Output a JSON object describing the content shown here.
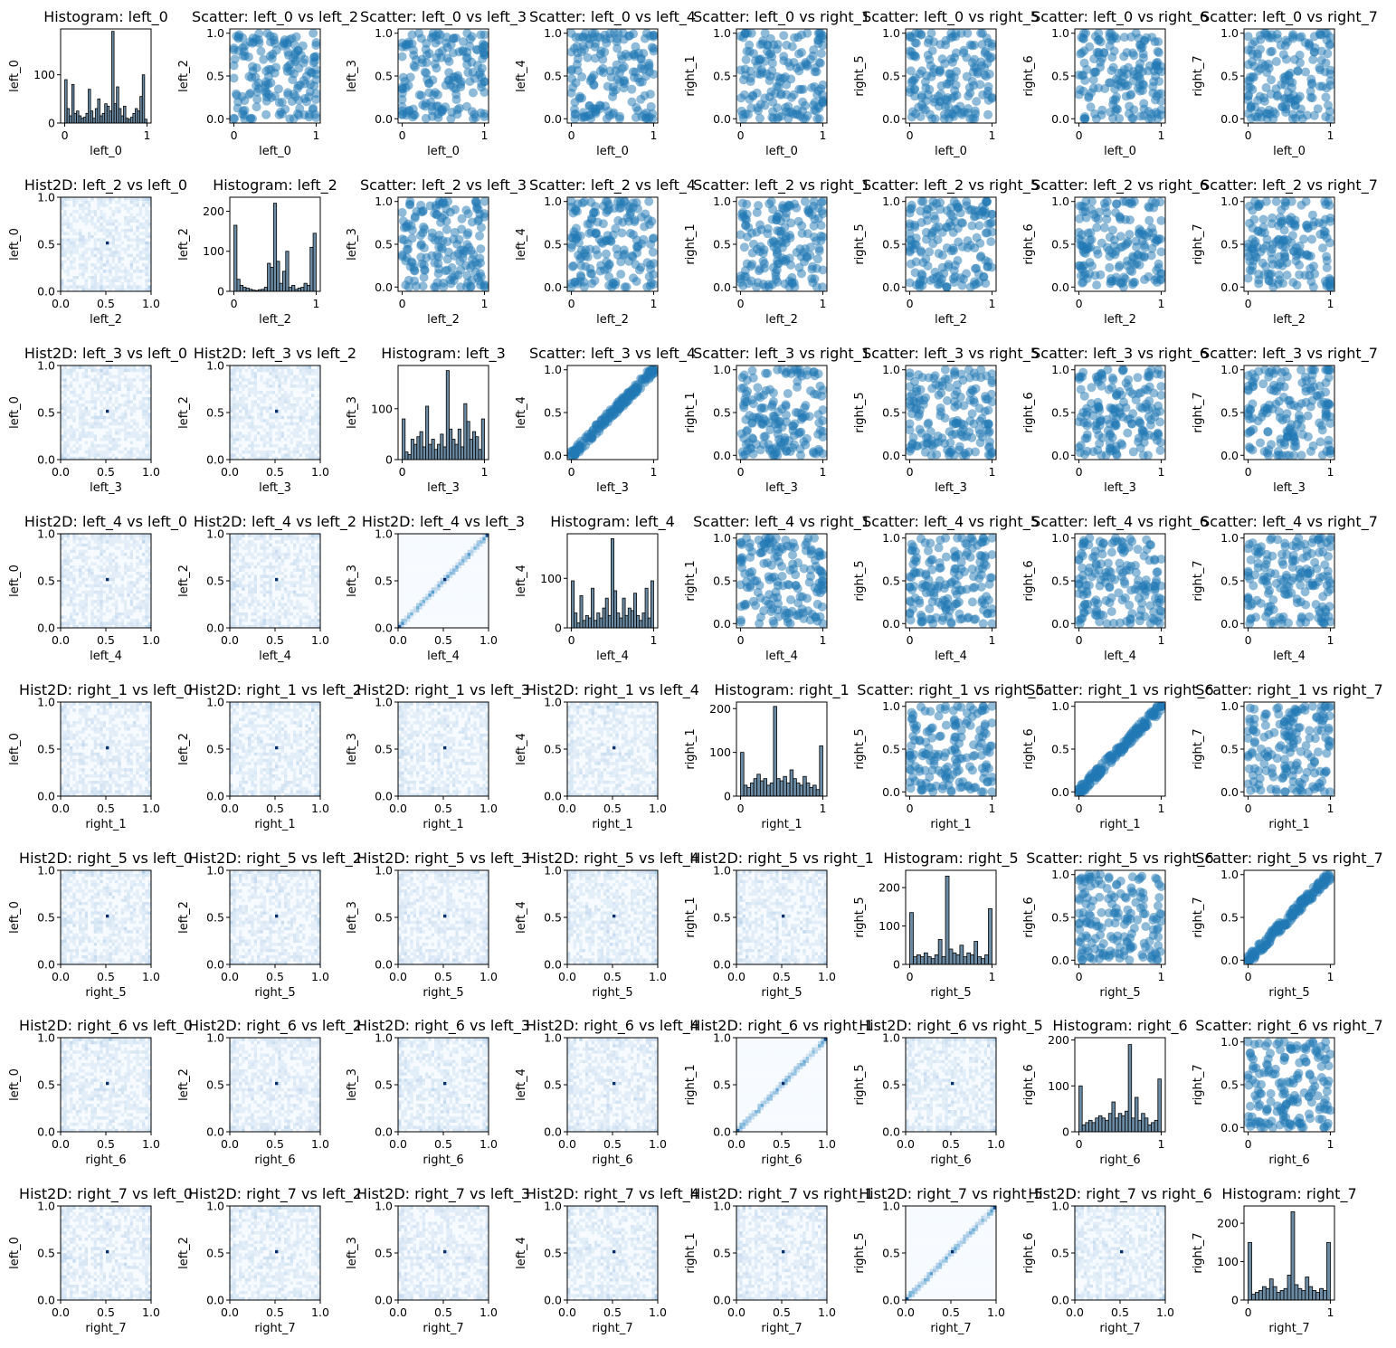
{
  "chart_data": {
    "type": "pair-grid",
    "variables": [
      "left_0",
      "left_2",
      "left_3",
      "left_4",
      "right_1",
      "right_5",
      "right_6",
      "right_7"
    ],
    "diag_type": "histogram",
    "upper_type": "scatter",
    "lower_type": "hist2d",
    "title_templates": {
      "histogram": "Histogram: {a}",
      "scatter": "Scatter: {a} vs {b}",
      "hist2d": "Hist2D: {a} vs {b}"
    },
    "colors": {
      "scatter": "#1f77b4",
      "histogram_bar": "#6b8ba4",
      "hist2d_cmap": "Blues"
    },
    "scatter_axis": {
      "lim": [
        -0.05,
        1.05
      ],
      "ticks": [
        0,
        0.5,
        1
      ],
      "tick_labels": [
        "0.0",
        "0.5",
        "1.0"
      ],
      "x_tick_labels": [
        "0",
        "1"
      ]
    },
    "hist2d_axis": {
      "lim": [
        0,
        1
      ],
      "ticks": [
        0,
        0.5,
        1
      ],
      "tick_labels": [
        "0.0",
        "0.5",
        "1.0"
      ]
    },
    "histogram_axis": {
      "xlim": [
        -0.05,
        1.05
      ],
      "x_ticks": [
        0,
        1
      ],
      "x_tick_labels": [
        "0",
        "1"
      ]
    },
    "histograms": [
      {
        "var": "left_0",
        "ylim": [
          0,
          195
        ],
        "y_ticks": [
          0,
          100
        ],
        "y_tick_labels": [
          "0",
          "100"
        ],
        "counts": [
          90,
          30,
          15,
          80,
          20,
          25,
          15,
          10,
          12,
          20,
          70,
          25,
          10,
          30,
          50,
          15,
          20,
          40,
          35,
          25,
          190,
          40,
          75,
          30,
          15,
          35,
          10,
          8,
          12,
          20,
          30,
          25,
          55,
          100,
          8
        ]
      },
      {
        "var": "left_2",
        "ylim": [
          0,
          235
        ],
        "y_ticks": [
          0,
          100,
          200
        ],
        "y_tick_labels": [
          "0",
          "100",
          "200"
        ],
        "counts": [
          165,
          30,
          15,
          10,
          8,
          5,
          3,
          2,
          4,
          5,
          10,
          70,
          60,
          220,
          75,
          20,
          50,
          100,
          10,
          15,
          5,
          8,
          10,
          20,
          15,
          110,
          145
        ]
      },
      {
        "var": "left_3",
        "ylim": [
          0,
          185
        ],
        "y_ticks": [
          0,
          100
        ],
        "y_tick_labels": [
          "0",
          "100"
        ],
        "counts": [
          80,
          15,
          10,
          40,
          30,
          45,
          55,
          25,
          105,
          30,
          40,
          20,
          30,
          50,
          25,
          175,
          60,
          40,
          30,
          60,
          25,
          110,
          75,
          40,
          55,
          45,
          20,
          80
        ]
      },
      {
        "var": "left_4",
        "ylim": [
          0,
          190
        ],
        "y_ticks": [
          0,
          100
        ],
        "y_tick_labels": [
          "0",
          "100"
        ],
        "counts": [
          95,
          30,
          10,
          65,
          15,
          25,
          20,
          80,
          15,
          30,
          20,
          40,
          60,
          25,
          180,
          75,
          30,
          20,
          60,
          25,
          40,
          35,
          70,
          25,
          15,
          30,
          80,
          20,
          95
        ]
      },
      {
        "var": "right_1",
        "ylim": [
          0,
          215
        ],
        "y_ticks": [
          0,
          100,
          200
        ],
        "y_tick_labels": [
          "0",
          "100",
          "200"
        ],
        "counts": [
          100,
          25,
          20,
          30,
          40,
          50,
          35,
          40,
          25,
          30,
          205,
          40,
          35,
          45,
          30,
          60,
          40,
          30,
          25,
          45,
          30,
          20,
          25,
          15,
          115
        ]
      },
      {
        "var": "right_5",
        "ylim": [
          0,
          245
        ],
        "y_ticks": [
          0,
          100,
          200
        ],
        "y_tick_labels": [
          "0",
          "100",
          "200"
        ],
        "counts": [
          135,
          20,
          25,
          20,
          30,
          20,
          15,
          25,
          65,
          20,
          230,
          40,
          30,
          25,
          50,
          20,
          30,
          25,
          60,
          20,
          15,
          25,
          145
        ]
      },
      {
        "var": "right_6",
        "ylim": [
          0,
          205
        ],
        "y_ticks": [
          0,
          100,
          200
        ],
        "y_tick_labels": [
          "0",
          "100",
          "200"
        ],
        "counts": [
          100,
          15,
          20,
          25,
          20,
          30,
          35,
          30,
          25,
          40,
          65,
          30,
          40,
          35,
          45,
          190,
          30,
          75,
          25,
          40,
          30,
          15,
          20,
          25,
          115
        ]
      },
      {
        "var": "right_7",
        "ylim": [
          0,
          245
        ],
        "y_ticks": [
          0,
          100,
          200
        ],
        "y_tick_labels": [
          "0",
          "100",
          "200"
        ],
        "counts": [
          150,
          15,
          20,
          25,
          35,
          30,
          55,
          35,
          20,
          25,
          30,
          65,
          230,
          40,
          30,
          25,
          60,
          35,
          25,
          20,
          30,
          25,
          150
        ]
      }
    ],
    "correlated_pairs": [
      [
        "left_3",
        "left_4"
      ],
      [
        "right_1",
        "right_6"
      ],
      [
        "right_5",
        "right_7"
      ]
    ],
    "value_levels": [
      0,
      0.1,
      0.25,
      0.4,
      0.5,
      0.6,
      0.75,
      0.9,
      1
    ]
  }
}
